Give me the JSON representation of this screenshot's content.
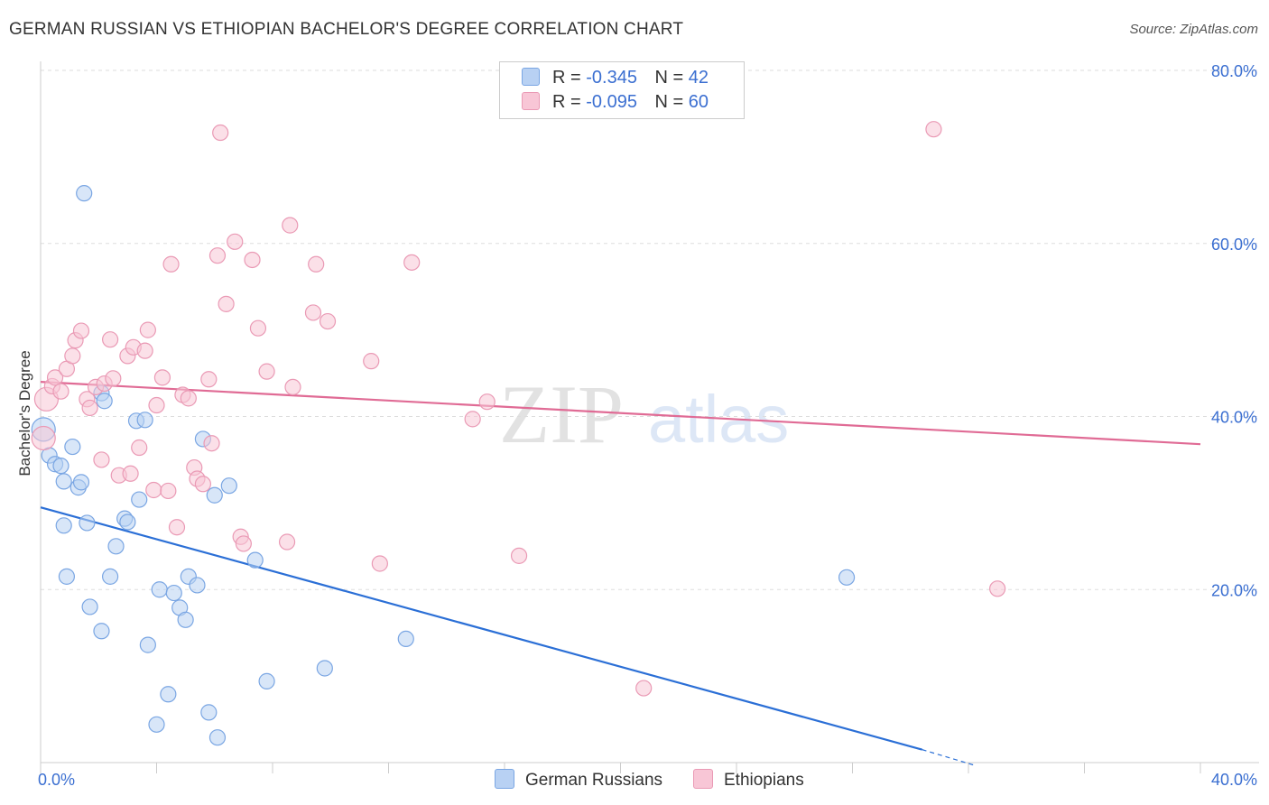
{
  "header": {
    "title": "GERMAN RUSSIAN VS ETHIOPIAN BACHELOR'S DEGREE CORRELATION CHART",
    "source": "Source: ZipAtlas.com"
  },
  "legend": {
    "r_label": "R =",
    "n_label": "N =",
    "rows": [
      {
        "r": "-0.345",
        "n": "42"
      },
      {
        "r": "-0.095",
        "n": "60"
      }
    ]
  },
  "watermark": {
    "zip": "ZIP",
    "atlas": "atlas"
  },
  "colors": {
    "blue_fill": "#b8d1f3",
    "blue_stroke": "#7aa6e3",
    "blue_line": "#2b6fd6",
    "pink_fill": "#f8c6d6",
    "pink_stroke": "#ea9ab5",
    "pink_line": "#e06b95",
    "tick_text": "#3b6fd1",
    "grid": "#dddddd"
  },
  "chart_data": {
    "type": "scatter",
    "title": "GERMAN RUSSIAN VS ETHIOPIAN BACHELOR'S DEGREE CORRELATION CHART",
    "xlabel": "",
    "ylabel": "Bachelor's Degree",
    "xlim": [
      0,
      40
    ],
    "ylim": [
      0,
      80
    ],
    "x_tick_labels": [
      "0.0%",
      "40.0%"
    ],
    "y_tick_labels": [
      "20.0%",
      "40.0%",
      "60.0%",
      "80.0%"
    ],
    "y_ticks": [
      20,
      40,
      60,
      80
    ],
    "grid": true,
    "legend_position": "top-center",
    "series": [
      {
        "name": "German Russians",
        "color": "blue",
        "points": [
          [
            0.1,
            38.5
          ],
          [
            0.3,
            35.5
          ],
          [
            0.5,
            34.5
          ],
          [
            0.7,
            34.3
          ],
          [
            0.8,
            32.5
          ],
          [
            0.8,
            27.4
          ],
          [
            0.9,
            21.5
          ],
          [
            1.1,
            36.5
          ],
          [
            1.3,
            31.8
          ],
          [
            1.4,
            32.4
          ],
          [
            1.5,
            65.8
          ],
          [
            1.6,
            27.7
          ],
          [
            1.7,
            18.0
          ],
          [
            2.1,
            42.7
          ],
          [
            2.1,
            15.2
          ],
          [
            2.2,
            41.8
          ],
          [
            2.4,
            21.5
          ],
          [
            2.6,
            25.0
          ],
          [
            2.9,
            28.2
          ],
          [
            3.0,
            27.8
          ],
          [
            3.3,
            39.5
          ],
          [
            3.4,
            30.4
          ],
          [
            3.6,
            39.6
          ],
          [
            3.7,
            13.6
          ],
          [
            4.0,
            4.4
          ],
          [
            4.1,
            20.0
          ],
          [
            4.4,
            7.9
          ],
          [
            4.6,
            19.6
          ],
          [
            4.8,
            17.9
          ],
          [
            5.0,
            16.5
          ],
          [
            5.1,
            21.5
          ],
          [
            5.4,
            20.5
          ],
          [
            5.6,
            37.4
          ],
          [
            5.8,
            5.8
          ],
          [
            6.0,
            30.9
          ],
          [
            6.1,
            2.9
          ],
          [
            6.5,
            32.0
          ],
          [
            7.4,
            23.4
          ],
          [
            7.8,
            9.4
          ],
          [
            9.8,
            10.9
          ],
          [
            12.6,
            14.3
          ],
          [
            27.8,
            21.4
          ]
        ],
        "trend": {
          "x": [
            0.0,
            30.4
          ],
          "y": [
            29.5,
            1.5
          ]
        },
        "trend_dashed": {
          "x": [
            30.4,
            32.2
          ],
          "y": [
            1.5,
            -0.3
          ]
        }
      },
      {
        "name": "Ethiopians",
        "color": "pink",
        "points": [
          [
            0.1,
            37.5
          ],
          [
            0.2,
            42.0
          ],
          [
            0.4,
            43.5
          ],
          [
            0.5,
            44.5
          ],
          [
            0.7,
            42.9
          ],
          [
            0.9,
            45.5
          ],
          [
            1.1,
            47.0
          ],
          [
            1.2,
            48.8
          ],
          [
            1.4,
            49.9
          ],
          [
            1.6,
            42.0
          ],
          [
            1.7,
            41.0
          ],
          [
            1.9,
            43.4
          ],
          [
            2.1,
            35.0
          ],
          [
            2.2,
            43.8
          ],
          [
            2.4,
            48.9
          ],
          [
            2.5,
            44.4
          ],
          [
            2.7,
            33.2
          ],
          [
            3.0,
            47.0
          ],
          [
            3.1,
            33.4
          ],
          [
            3.2,
            48.0
          ],
          [
            3.4,
            36.4
          ],
          [
            3.6,
            47.6
          ],
          [
            3.7,
            50.0
          ],
          [
            3.9,
            31.5
          ],
          [
            4.0,
            41.3
          ],
          [
            4.2,
            44.5
          ],
          [
            4.4,
            31.4
          ],
          [
            4.5,
            57.6
          ],
          [
            4.7,
            27.2
          ],
          [
            4.9,
            42.5
          ],
          [
            5.1,
            42.1
          ],
          [
            5.3,
            34.1
          ],
          [
            5.4,
            32.8
          ],
          [
            5.6,
            32.2
          ],
          [
            5.8,
            44.3
          ],
          [
            5.9,
            36.9
          ],
          [
            6.1,
            58.6
          ],
          [
            6.2,
            72.8
          ],
          [
            6.4,
            53.0
          ],
          [
            6.7,
            60.2
          ],
          [
            6.9,
            26.1
          ],
          [
            7.0,
            25.3
          ],
          [
            7.3,
            58.1
          ],
          [
            7.5,
            50.2
          ],
          [
            7.8,
            45.2
          ],
          [
            8.5,
            25.5
          ],
          [
            8.6,
            62.1
          ],
          [
            8.7,
            43.4
          ],
          [
            9.4,
            52.0
          ],
          [
            9.5,
            57.6
          ],
          [
            9.9,
            51.0
          ],
          [
            11.4,
            46.4
          ],
          [
            11.7,
            23.0
          ],
          [
            12.8,
            57.8
          ],
          [
            14.9,
            39.7
          ],
          [
            15.4,
            41.7
          ],
          [
            16.5,
            23.9
          ],
          [
            20.8,
            8.6
          ],
          [
            30.8,
            73.2
          ],
          [
            33.0,
            20.1
          ]
        ],
        "trend": {
          "x": [
            0.0,
            40.0
          ],
          "y": [
            44.0,
            36.8
          ]
        }
      }
    ]
  }
}
